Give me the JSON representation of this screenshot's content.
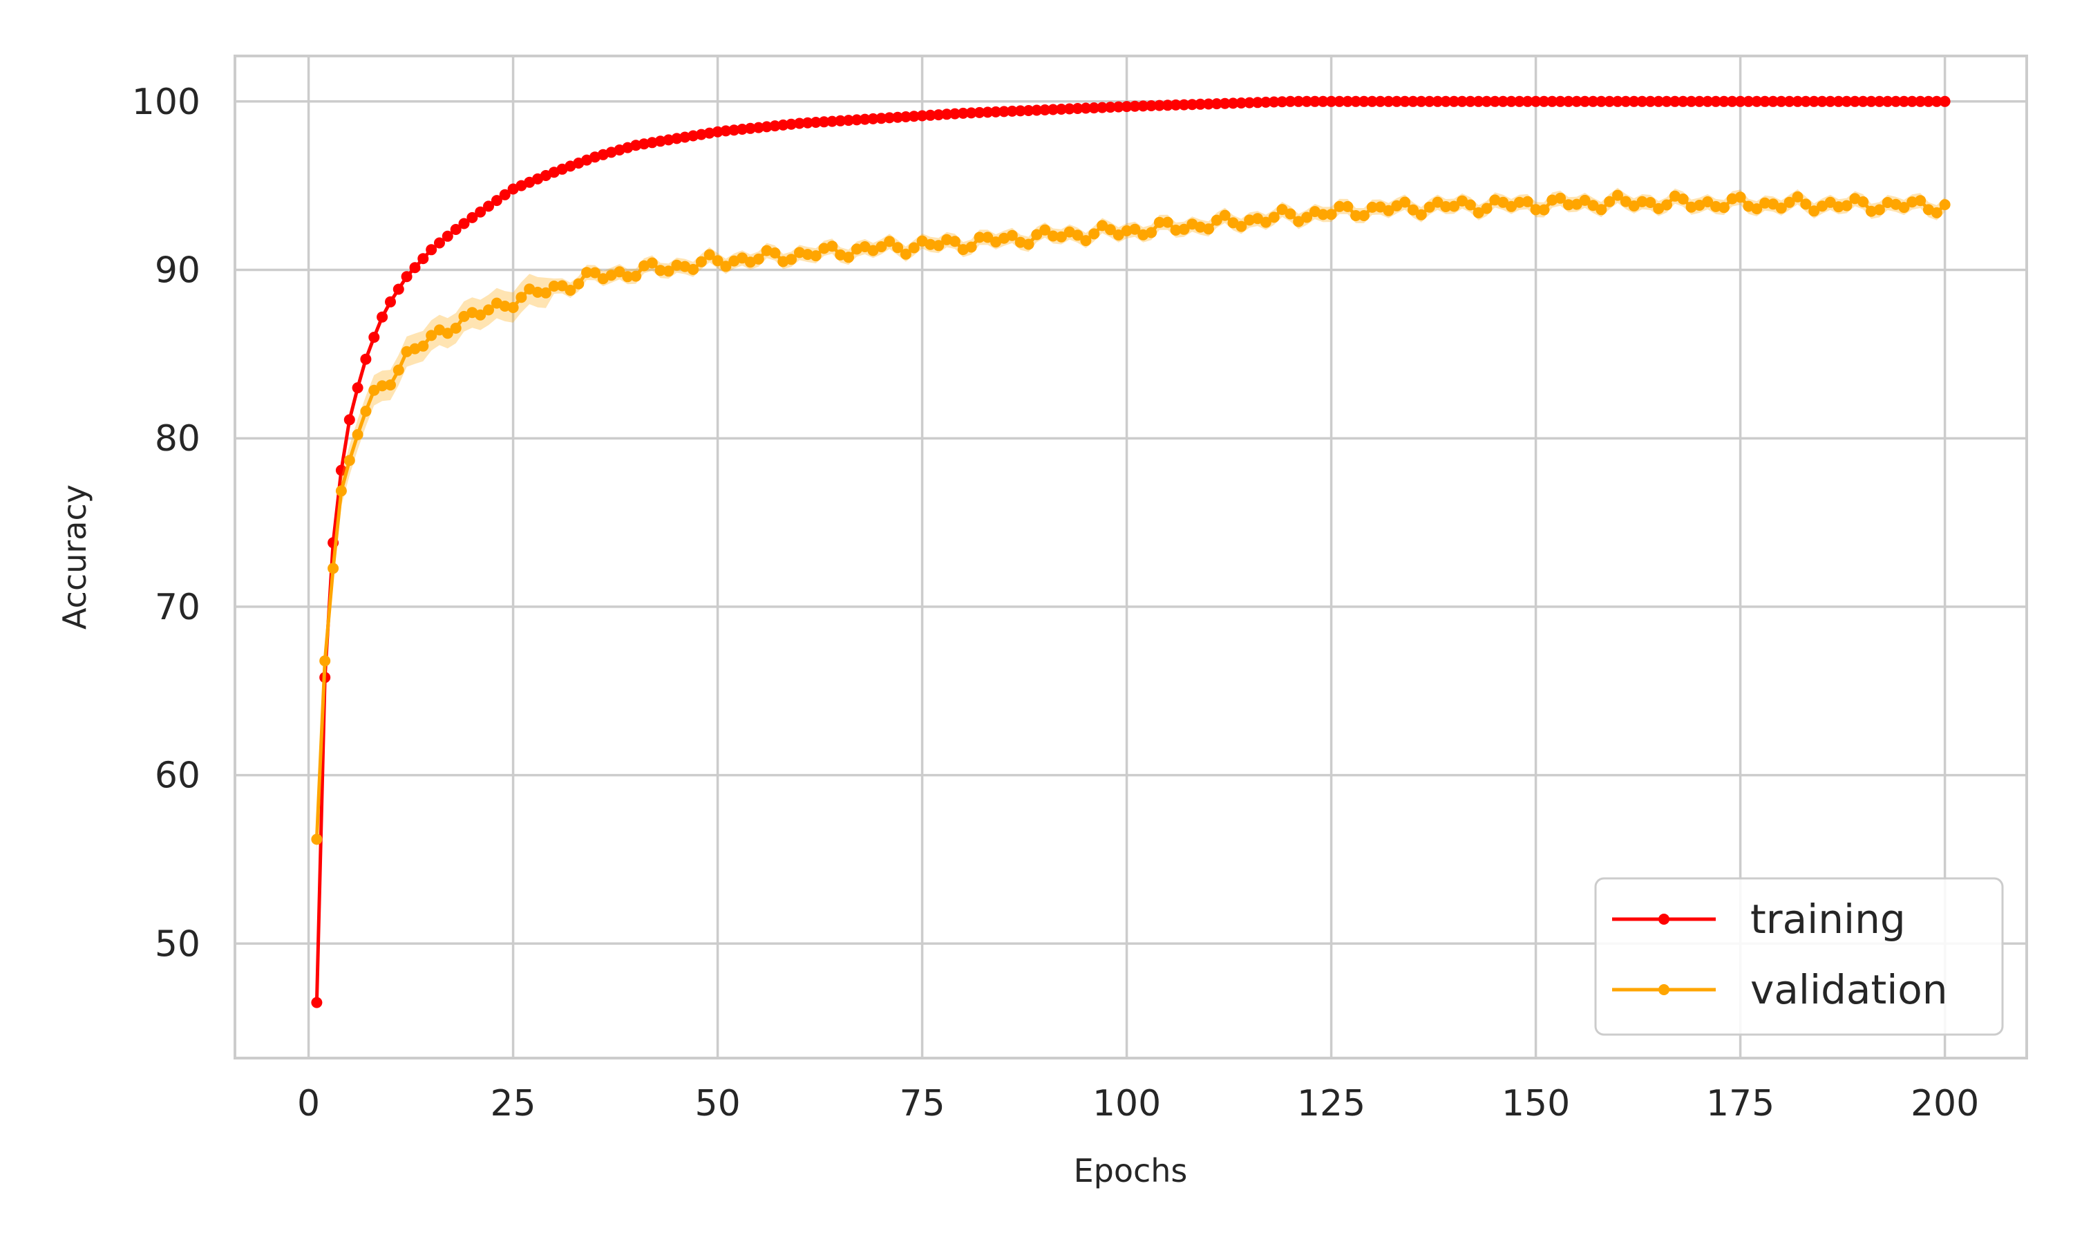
{
  "chart_data": {
    "type": "line",
    "title": "",
    "xlabel": "Epochs",
    "ylabel": "Accuracy",
    "xlim": [
      -9,
      210
    ],
    "ylim": [
      43.2,
      102.7
    ],
    "x_ticks": [
      0,
      25,
      50,
      75,
      100,
      125,
      150,
      175,
      200
    ],
    "x_tick_labels": [
      "0",
      "25",
      "50",
      "75",
      "100",
      "125",
      "150",
      "175",
      "200"
    ],
    "y_ticks": [
      50,
      60,
      70,
      80,
      90,
      100
    ],
    "y_tick_labels": [
      "50",
      "60",
      "70",
      "80",
      "90",
      "100"
    ],
    "grid": true,
    "legend_position": "lower-right",
    "x_range": [
      1,
      200
    ],
    "series": [
      {
        "name": "training",
        "color": "#ff0000",
        "marker": "circle",
        "anchors": [
          [
            1,
            46.5
          ],
          [
            2,
            65.8
          ],
          [
            3,
            73.8
          ],
          [
            4,
            78.1
          ],
          [
            5,
            81.1
          ],
          [
            6,
            83.0
          ],
          [
            7,
            84.7
          ],
          [
            8,
            86.0
          ],
          [
            9,
            87.2
          ],
          [
            10,
            88.1
          ],
          [
            12,
            89.6
          ],
          [
            15,
            91.2
          ],
          [
            18,
            92.4
          ],
          [
            20,
            93.1
          ],
          [
            25,
            94.8
          ],
          [
            30,
            95.8
          ],
          [
            35,
            96.7
          ],
          [
            40,
            97.4
          ],
          [
            45,
            97.8
          ],
          [
            50,
            98.2
          ],
          [
            60,
            98.7
          ],
          [
            70,
            99.0
          ],
          [
            80,
            99.3
          ],
          [
            90,
            99.5
          ],
          [
            100,
            99.7
          ],
          [
            110,
            99.85
          ],
          [
            120,
            100.0
          ],
          [
            200,
            100.0
          ]
        ]
      },
      {
        "name": "validation",
        "color": "#ffa500",
        "marker": "circle",
        "band": true,
        "anchors": [
          [
            1,
            55.8
          ],
          [
            2,
            66.9
          ],
          [
            3,
            72.7
          ],
          [
            4,
            76.9
          ],
          [
            5,
            78.5
          ],
          [
            6,
            80.3
          ],
          [
            7,
            81.6
          ],
          [
            8,
            82.5
          ],
          [
            10,
            83.6
          ],
          [
            12,
            84.9
          ],
          [
            15,
            85.9
          ],
          [
            18,
            86.9
          ],
          [
            20,
            87.2
          ],
          [
            25,
            88.2
          ],
          [
            30,
            88.9
          ],
          [
            35,
            89.6
          ],
          [
            40,
            89.9
          ],
          [
            45,
            90.2
          ],
          [
            50,
            90.5
          ],
          [
            60,
            90.9
          ],
          [
            70,
            91.3
          ],
          [
            80,
            91.6
          ],
          [
            90,
            92.0
          ],
          [
            100,
            92.3
          ],
          [
            110,
            92.7
          ],
          [
            120,
            93.2
          ],
          [
            130,
            93.6
          ],
          [
            140,
            93.8
          ],
          [
            150,
            93.9
          ],
          [
            160,
            94.0
          ],
          [
            180,
            93.9
          ],
          [
            200,
            93.8
          ]
        ]
      }
    ]
  }
}
